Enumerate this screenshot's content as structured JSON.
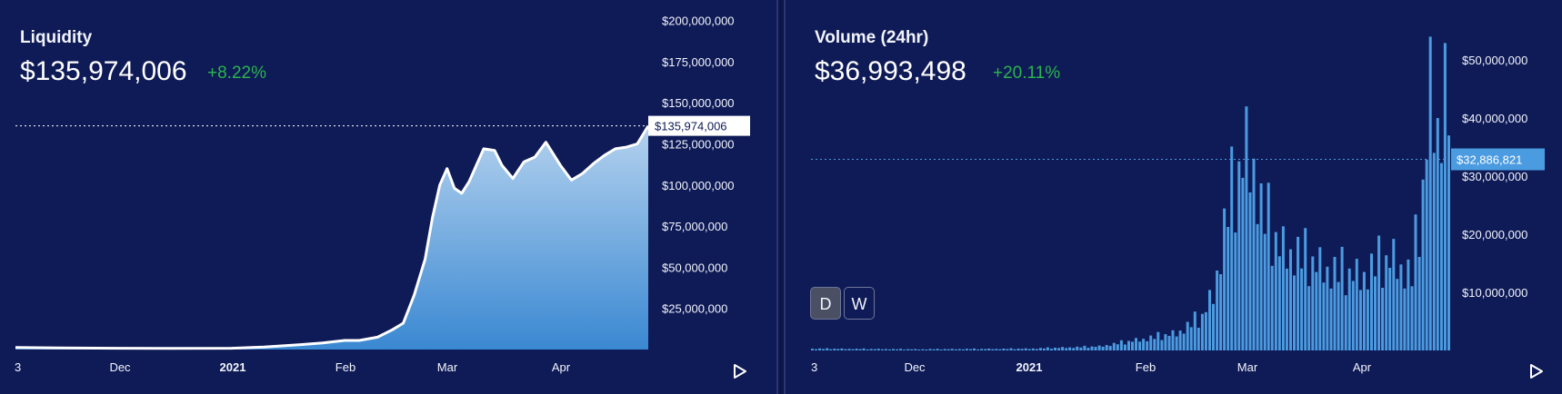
{
  "liquidity": {
    "title": "Liquidity",
    "value": "$135,974,006",
    "change": "+8.22%",
    "crosshair_label": "$135,974,006",
    "crosshair_value": 135974006,
    "y_ticks": [
      "$200,000,000",
      "$175,000,000",
      "$150,000,000",
      "$125,000,000",
      "$100,000,000",
      "$75,000,000",
      "$50,000,000",
      "$25,000,000"
    ],
    "x_ticks": [
      "3",
      "Dec",
      "2021",
      "Feb",
      "Mar",
      "Apr"
    ],
    "play_icon": "play-icon"
  },
  "volume": {
    "title": "Volume (24hr)",
    "value": "$36,993,498",
    "change": "+20.11%",
    "crosshair_label": "$32,886,821",
    "crosshair_value": 32886821,
    "y_ticks": [
      "$50,000,000",
      "$40,000,000",
      "$30,000,000",
      "$20,000,000",
      "$10,000,000"
    ],
    "x_ticks": [
      "3",
      "Dec",
      "2021",
      "Feb",
      "Mar",
      "Apr"
    ],
    "buttons": [
      "D",
      "W"
    ],
    "play_icon": "play-icon"
  },
  "colors": {
    "background": "#0f1b57",
    "accent_positive": "#2bb34b",
    "area_top": "#b4d2ee",
    "area_bottom": "#3a88d2",
    "bar": "#4b9be0",
    "volume_label_bg": "#4b9be0"
  },
  "chart_data": [
    {
      "type": "area",
      "title": "Liquidity",
      "ylim": [
        0,
        200000000
      ],
      "x": [
        "Nov 3",
        "Nov 15",
        "Dec 1",
        "Dec 15",
        "Jan 1",
        "Jan 10",
        "Jan 20",
        "Jan 26",
        "Feb 1",
        "Feb 5",
        "Feb 10",
        "Feb 14",
        "Feb 17",
        "Feb 20",
        "Feb 23",
        "Feb 25",
        "Feb 27",
        "Mar 1",
        "Mar 3",
        "Mar 5",
        "Mar 7",
        "Mar 9",
        "Mar 11",
        "Mar 14",
        "Mar 16",
        "Mar 19",
        "Mar 22",
        "Mar 25",
        "Mar 28",
        "Apr 1",
        "Apr 4",
        "Apr 7",
        "Apr 10",
        "Apr 13",
        "Apr 16",
        "Apr 19",
        "Apr 22",
        "Apr 25"
      ],
      "values": [
        1200000,
        1000000,
        800000,
        700000,
        800000,
        1500000,
        3000000,
        4000000,
        5500000,
        5500000,
        7500000,
        12000000,
        16000000,
        33000000,
        55000000,
        80000000,
        100000000,
        110000000,
        98000000,
        95000000,
        102000000,
        112000000,
        122000000,
        121000000,
        112000000,
        104000000,
        114000000,
        117000000,
        126000000,
        112000000,
        103000000,
        107000000,
        113000000,
        118000000,
        122000000,
        123000000,
        125000000,
        135974006
      ]
    },
    {
      "type": "bar",
      "title": "Volume (24hr)",
      "ylim": [
        0,
        56000000
      ],
      "x": [
        "Nov 3",
        "Dec 1",
        "Jan 1",
        "Jan 20",
        "Feb 1",
        "Feb 10",
        "Feb 17",
        "Feb 20",
        "Feb 24",
        "Mar 1",
        "Mar 3",
        "Mar 5",
        "Mar 10",
        "Mar 15",
        "Mar 20",
        "Mar 25",
        "Apr 1",
        "Apr 5",
        "Apr 10",
        "Apr 15",
        "Apr 18",
        "Apr 20",
        "Apr 22",
        "Apr 24",
        "Apr 25"
      ],
      "values": [
        300000,
        200000,
        300000,
        700000,
        2000000,
        3000000,
        6000000,
        10000000,
        25000000,
        35000000,
        33000000,
        25000000,
        18000000,
        17000000,
        15000000,
        14000000,
        13000000,
        15000000,
        16000000,
        13000000,
        28000000,
        45000000,
        40000000,
        46000000,
        36993498
      ]
    }
  ]
}
